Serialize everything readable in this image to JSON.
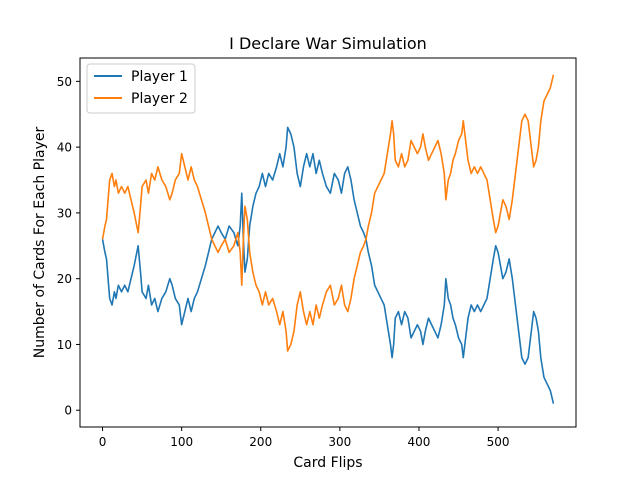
{
  "chart_data": {
    "type": "line",
    "title": "I Declare War Simulation",
    "xlabel": "Card Flips",
    "ylabel": "Number of Cards For Each Player",
    "xlim": [
      -28.5,
      598.5
    ],
    "ylim": [
      -2.55,
      53.55
    ],
    "xticks": [
      0,
      100,
      200,
      300,
      400,
      500
    ],
    "yticks": [
      0,
      10,
      20,
      30,
      40,
      50
    ],
    "legend_position": "top-left",
    "grid": false,
    "series": [
      {
        "name": "Player 1",
        "color": "#1f77b4",
        "points": [
          [
            0,
            26
          ],
          [
            3,
            24
          ],
          [
            5,
            23
          ],
          [
            7,
            20
          ],
          [
            9,
            17
          ],
          [
            12,
            16
          ],
          [
            15,
            18
          ],
          [
            17,
            17
          ],
          [
            20,
            19
          ],
          [
            24,
            18
          ],
          [
            28,
            19
          ],
          [
            32,
            18
          ],
          [
            36,
            20
          ],
          [
            40,
            22
          ],
          [
            45,
            25
          ],
          [
            48,
            21
          ],
          [
            50,
            18
          ],
          [
            55,
            17
          ],
          [
            58,
            19
          ],
          [
            62,
            16
          ],
          [
            66,
            17
          ],
          [
            70,
            15
          ],
          [
            75,
            17
          ],
          [
            80,
            18
          ],
          [
            85,
            20
          ],
          [
            88,
            19
          ],
          [
            92,
            17
          ],
          [
            97,
            16
          ],
          [
            100,
            13
          ],
          [
            104,
            15
          ],
          [
            108,
            17
          ],
          [
            112,
            15
          ],
          [
            116,
            17
          ],
          [
            120,
            18
          ],
          [
            125,
            20
          ],
          [
            130,
            22
          ],
          [
            134,
            24
          ],
          [
            138,
            26
          ],
          [
            142,
            27
          ],
          [
            146,
            28
          ],
          [
            150,
            27
          ],
          [
            155,
            26
          ],
          [
            160,
            28
          ],
          [
            166,
            27
          ],
          [
            171,
            25
          ],
          [
            174,
            28
          ],
          [
            176,
            33
          ],
          [
            178,
            26
          ],
          [
            180,
            21
          ],
          [
            183,
            23
          ],
          [
            186,
            28
          ],
          [
            190,
            31
          ],
          [
            194,
            33
          ],
          [
            198,
            34
          ],
          [
            202,
            36
          ],
          [
            206,
            34
          ],
          [
            210,
            36
          ],
          [
            215,
            35
          ],
          [
            220,
            37
          ],
          [
            224,
            39
          ],
          [
            228,
            37
          ],
          [
            232,
            40
          ],
          [
            234,
            43
          ],
          [
            238,
            42
          ],
          [
            242,
            40
          ],
          [
            246,
            36
          ],
          [
            250,
            34
          ],
          [
            254,
            37
          ],
          [
            258,
            39
          ],
          [
            262,
            37
          ],
          [
            266,
            39
          ],
          [
            270,
            36
          ],
          [
            274,
            38
          ],
          [
            278,
            36
          ],
          [
            283,
            34
          ],
          [
            288,
            33
          ],
          [
            293,
            36
          ],
          [
            298,
            35
          ],
          [
            302,
            33
          ],
          [
            306,
            36
          ],
          [
            310,
            37
          ],
          [
            314,
            35
          ],
          [
            318,
            32
          ],
          [
            322,
            30
          ],
          [
            326,
            28
          ],
          [
            330,
            27
          ],
          [
            333,
            26
          ],
          [
            336,
            24
          ],
          [
            340,
            22
          ],
          [
            344,
            19
          ],
          [
            348,
            18
          ],
          [
            352,
            17
          ],
          [
            356,
            16
          ],
          [
            360,
            13
          ],
          [
            364,
            10
          ],
          [
            366,
            8
          ],
          [
            368,
            10
          ],
          [
            370,
            14
          ],
          [
            374,
            15
          ],
          [
            378,
            13
          ],
          [
            382,
            15
          ],
          [
            386,
            14
          ],
          [
            390,
            11
          ],
          [
            394,
            12
          ],
          [
            398,
            13
          ],
          [
            402,
            12
          ],
          [
            405,
            10
          ],
          [
            408,
            12
          ],
          [
            412,
            14
          ],
          [
            416,
            13
          ],
          [
            420,
            12
          ],
          [
            424,
            11
          ],
          [
            428,
            13
          ],
          [
            432,
            16
          ],
          [
            434,
            20
          ],
          [
            437,
            17
          ],
          [
            440,
            16
          ],
          [
            443,
            14
          ],
          [
            446,
            13
          ],
          [
            450,
            11
          ],
          [
            454,
            10
          ],
          [
            456,
            8
          ],
          [
            458,
            10
          ],
          [
            462,
            14
          ],
          [
            466,
            16
          ],
          [
            470,
            15
          ],
          [
            474,
            16
          ],
          [
            478,
            15
          ],
          [
            482,
            16
          ],
          [
            486,
            17
          ],
          [
            490,
            20
          ],
          [
            494,
            23
          ],
          [
            497,
            25
          ],
          [
            500,
            24
          ],
          [
            503,
            22
          ],
          [
            506,
            20
          ],
          [
            510,
            21
          ],
          [
            514,
            23
          ],
          [
            518,
            20
          ],
          [
            521,
            17
          ],
          [
            524,
            14
          ],
          [
            527,
            11
          ],
          [
            530,
            8
          ],
          [
            534,
            7
          ],
          [
            538,
            8
          ],
          [
            542,
            12
          ],
          [
            545,
            15
          ],
          [
            548,
            14
          ],
          [
            551,
            12
          ],
          [
            554,
            8
          ],
          [
            558,
            5
          ],
          [
            562,
            4
          ],
          [
            566,
            3
          ],
          [
            570,
            1
          ]
        ]
      },
      {
        "name": "Player 2",
        "color": "#ff7f0e",
        "points": [
          [
            0,
            26
          ],
          [
            3,
            28
          ],
          [
            5,
            29
          ],
          [
            7,
            32
          ],
          [
            9,
            35
          ],
          [
            12,
            36
          ],
          [
            15,
            34
          ],
          [
            17,
            35
          ],
          [
            20,
            33
          ],
          [
            24,
            34
          ],
          [
            28,
            33
          ],
          [
            32,
            34
          ],
          [
            36,
            32
          ],
          [
            40,
            30
          ],
          [
            45,
            27
          ],
          [
            48,
            31
          ],
          [
            50,
            34
          ],
          [
            55,
            35
          ],
          [
            58,
            33
          ],
          [
            62,
            36
          ],
          [
            66,
            35
          ],
          [
            70,
            37
          ],
          [
            75,
            35
          ],
          [
            80,
            34
          ],
          [
            85,
            32
          ],
          [
            88,
            33
          ],
          [
            92,
            35
          ],
          [
            97,
            36
          ],
          [
            100,
            39
          ],
          [
            104,
            37
          ],
          [
            108,
            35
          ],
          [
            112,
            37
          ],
          [
            116,
            35
          ],
          [
            120,
            34
          ],
          [
            125,
            32
          ],
          [
            130,
            30
          ],
          [
            134,
            28
          ],
          [
            138,
            26
          ],
          [
            142,
            25
          ],
          [
            146,
            24
          ],
          [
            150,
            25
          ],
          [
            155,
            26
          ],
          [
            160,
            24
          ],
          [
            166,
            25
          ],
          [
            171,
            27
          ],
          [
            174,
            24
          ],
          [
            176,
            19
          ],
          [
            178,
            26
          ],
          [
            180,
            31
          ],
          [
            183,
            29
          ],
          [
            186,
            24
          ],
          [
            190,
            21
          ],
          [
            194,
            19
          ],
          [
            198,
            18
          ],
          [
            202,
            16
          ],
          [
            206,
            18
          ],
          [
            210,
            16
          ],
          [
            215,
            17
          ],
          [
            220,
            15
          ],
          [
            224,
            13
          ],
          [
            228,
            15
          ],
          [
            232,
            12
          ],
          [
            234,
            9
          ],
          [
            238,
            10
          ],
          [
            242,
            12
          ],
          [
            246,
            16
          ],
          [
            250,
            18
          ],
          [
            254,
            15
          ],
          [
            258,
            13
          ],
          [
            262,
            15
          ],
          [
            266,
            13
          ],
          [
            270,
            16
          ],
          [
            274,
            14
          ],
          [
            278,
            16
          ],
          [
            283,
            18
          ],
          [
            288,
            19
          ],
          [
            293,
            16
          ],
          [
            298,
            17
          ],
          [
            302,
            19
          ],
          [
            306,
            16
          ],
          [
            310,
            15
          ],
          [
            314,
            17
          ],
          [
            318,
            20
          ],
          [
            322,
            22
          ],
          [
            326,
            24
          ],
          [
            330,
            25
          ],
          [
            333,
            26
          ],
          [
            336,
            28
          ],
          [
            340,
            30
          ],
          [
            344,
            33
          ],
          [
            348,
            34
          ],
          [
            352,
            35
          ],
          [
            356,
            36
          ],
          [
            360,
            39
          ],
          [
            364,
            42
          ],
          [
            366,
            44
          ],
          [
            368,
            42
          ],
          [
            370,
            38
          ],
          [
            374,
            37
          ],
          [
            378,
            39
          ],
          [
            382,
            37
          ],
          [
            386,
            38
          ],
          [
            390,
            41
          ],
          [
            394,
            40
          ],
          [
            398,
            39
          ],
          [
            402,
            40
          ],
          [
            405,
            42
          ],
          [
            408,
            40
          ],
          [
            412,
            38
          ],
          [
            416,
            39
          ],
          [
            420,
            40
          ],
          [
            424,
            41
          ],
          [
            428,
            39
          ],
          [
            432,
            36
          ],
          [
            434,
            32
          ],
          [
            437,
            35
          ],
          [
            440,
            36
          ],
          [
            443,
            38
          ],
          [
            446,
            39
          ],
          [
            450,
            41
          ],
          [
            454,
            42
          ],
          [
            456,
            44
          ],
          [
            458,
            42
          ],
          [
            462,
            38
          ],
          [
            466,
            36
          ],
          [
            470,
            37
          ],
          [
            474,
            36
          ],
          [
            478,
            37
          ],
          [
            482,
            36
          ],
          [
            486,
            35
          ],
          [
            490,
            32
          ],
          [
            494,
            29
          ],
          [
            497,
            27
          ],
          [
            500,
            28
          ],
          [
            503,
            30
          ],
          [
            506,
            32
          ],
          [
            510,
            31
          ],
          [
            514,
            29
          ],
          [
            518,
            32
          ],
          [
            521,
            35
          ],
          [
            524,
            38
          ],
          [
            527,
            41
          ],
          [
            530,
            44
          ],
          [
            534,
            45
          ],
          [
            538,
            44
          ],
          [
            542,
            40
          ],
          [
            545,
            37
          ],
          [
            548,
            38
          ],
          [
            551,
            40
          ],
          [
            554,
            44
          ],
          [
            558,
            47
          ],
          [
            562,
            48
          ],
          [
            566,
            49
          ],
          [
            570,
            51
          ]
        ]
      }
    ]
  }
}
